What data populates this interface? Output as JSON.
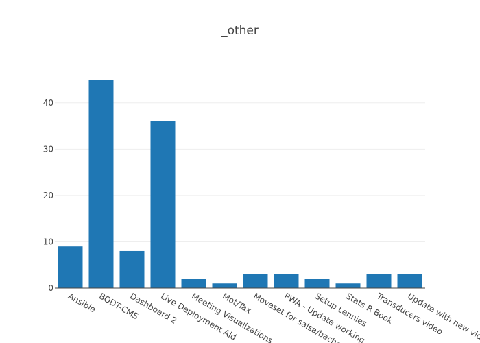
{
  "chart_data": {
    "type": "bar",
    "title": "_other",
    "xlabel": "",
    "ylabel": "",
    "categories": [
      "Ansible",
      "BODT-CMS",
      "Dashboard 2",
      "Live Deployment Aid",
      "Meeting Visualizations",
      "Mot/Tax",
      "Moveset for salsa/bachata",
      "PWA - Update working",
      "Setup Lennies",
      "Stats R Book",
      "Transducers video",
      "Update with new videos"
    ],
    "values": [
      9,
      45,
      8,
      36,
      2,
      1,
      3,
      3,
      2,
      1,
      3,
      3
    ],
    "ylim": [
      0,
      47.37
    ],
    "yticks": [
      0,
      10,
      20,
      30,
      40
    ],
    "grid": true,
    "legend": "none",
    "bar_color": "#1f77b4"
  }
}
